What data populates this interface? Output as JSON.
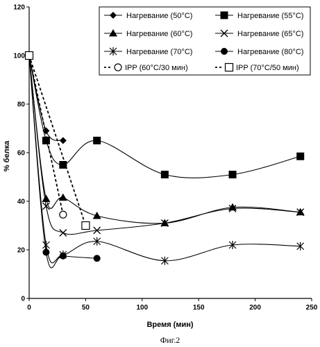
{
  "caption": "Фиг.2",
  "chart_data": {
    "type": "line",
    "xlabel": "Время (мин)",
    "ylabel": "% белка",
    "xlim": [
      0,
      250
    ],
    "ylim": [
      0,
      120
    ],
    "xticks": [
      0,
      50,
      100,
      150,
      200,
      250
    ],
    "yticks": [
      0,
      20,
      40,
      60,
      80,
      100,
      120
    ],
    "grid": false,
    "legend_position": "top-right",
    "series": [
      {
        "name": "Нагревание (50°C)",
        "marker": "diamond",
        "style": "smooth",
        "x": [
          0,
          15,
          30
        ],
        "y": [
          100,
          69,
          65
        ]
      },
      {
        "name": "Нагревание (55°C)",
        "marker": "square-filled",
        "style": "smooth",
        "x": [
          0,
          15,
          30,
          60,
          120,
          180,
          240
        ],
        "y": [
          100,
          65,
          55,
          65,
          51,
          51,
          58.5
        ]
      },
      {
        "name": "Нагревание (60°C)",
        "marker": "triangle",
        "style": "smooth",
        "x": [
          0,
          15,
          30,
          60,
          120,
          180,
          240
        ],
        "y": [
          100,
          41,
          41.5,
          34,
          31,
          37.5,
          35.5
        ]
      },
      {
        "name": "Нагревание (65°C)",
        "marker": "x",
        "style": "smooth",
        "x": [
          0,
          15,
          30,
          60,
          120,
          180,
          240
        ],
        "y": [
          100,
          38,
          27,
          28,
          31,
          37,
          35.5
        ]
      },
      {
        "name": "Нагревание (70°C)",
        "marker": "star",
        "style": "smooth",
        "x": [
          0,
          15,
          30,
          60,
          120,
          180,
          240
        ],
        "y": [
          100,
          22,
          18,
          23.5,
          15.5,
          22,
          21.5
        ]
      },
      {
        "name": "Нагревание (80°C)",
        "marker": "circle-filled",
        "style": "smooth",
        "x": [
          0,
          15,
          30,
          60
        ],
        "y": [
          100,
          19,
          17.5,
          16.5
        ]
      },
      {
        "name": "IPP (60°C/30 мин)",
        "marker": "circle-open",
        "style": "dashed",
        "x": [
          0,
          30
        ],
        "y": [
          100,
          34.5
        ]
      },
      {
        "name": "IPP (70°C/50 мин)",
        "marker": "square-open",
        "style": "dashed",
        "x": [
          0,
          50
        ],
        "y": [
          100,
          30
        ]
      }
    ]
  }
}
